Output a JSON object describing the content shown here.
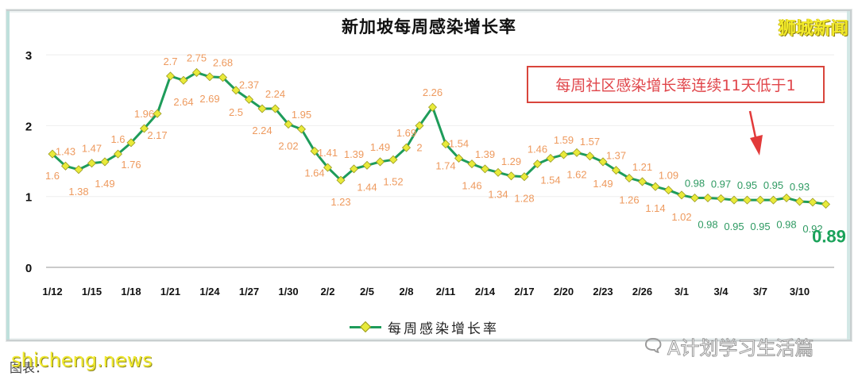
{
  "header": {
    "title": "新加坡每周感染增长率",
    "brand": "狮城新闻"
  },
  "annotation": {
    "text": "每周社区感染增长率连续11天低于1",
    "color": "#e0454a"
  },
  "legend": {
    "label": "每周感染增长率"
  },
  "footer": {
    "caption": "图表：",
    "site_watermark": "shicheng.news",
    "wechat_watermark": "A计划学习生活篇"
  },
  "colors": {
    "line": "#1e9c5a",
    "marker_fill": "#e8ea3a",
    "label_above_1": "#ee9a5e",
    "label_below_1": "#2e9a62",
    "highlight": "#1aa25a"
  },
  "chart_data": {
    "type": "line",
    "title": "新加坡每周感染增长率",
    "xlabel": "",
    "ylabel": "",
    "ylim": [
      0,
      3
    ],
    "yticks": [
      0,
      1,
      2,
      3
    ],
    "grid": true,
    "legend_position": "bottom",
    "xtick_labels": [
      "1/12",
      "1/15",
      "1/18",
      "1/21",
      "1/24",
      "1/27",
      "1/30",
      "2/2",
      "2/5",
      "2/8",
      "2/11",
      "2/14",
      "2/17",
      "2/20",
      "2/23",
      "2/26",
      "3/1",
      "3/4",
      "3/7",
      "3/10"
    ],
    "x": [
      "1/12",
      "1/13",
      "1/14",
      "1/15",
      "1/16",
      "1/17",
      "1/18",
      "1/19",
      "1/20",
      "1/21",
      "1/22",
      "1/23",
      "1/24",
      "1/25",
      "1/26",
      "1/27",
      "1/28",
      "1/29",
      "1/30",
      "1/31",
      "2/1",
      "2/2",
      "2/3",
      "2/4",
      "2/5",
      "2/6",
      "2/7",
      "2/8",
      "2/9",
      "2/10",
      "2/11",
      "2/12",
      "2/13",
      "2/14",
      "2/15",
      "2/16",
      "2/17",
      "2/18",
      "2/19",
      "2/20",
      "2/21",
      "2/22",
      "2/23",
      "2/24",
      "2/25",
      "2/26",
      "2/27",
      "2/28",
      "3/1",
      "3/2",
      "3/3",
      "3/4",
      "3/5",
      "3/6",
      "3/7",
      "3/8",
      "3/9",
      "3/10",
      "3/11",
      "3/12"
    ],
    "series": [
      {
        "name": "每周感染增长率",
        "values": [
          1.6,
          1.43,
          1.38,
          1.47,
          1.49,
          1.6,
          1.76,
          1.96,
          2.17,
          2.7,
          2.64,
          2.75,
          2.69,
          2.68,
          2.5,
          2.37,
          2.24,
          2.24,
          2.02,
          1.95,
          1.64,
          1.41,
          1.23,
          1.39,
          1.44,
          1.49,
          1.52,
          1.69,
          2,
          2.26,
          1.74,
          1.54,
          1.46,
          1.39,
          1.34,
          1.29,
          1.28,
          1.46,
          1.54,
          1.59,
          1.62,
          1.57,
          1.49,
          1.37,
          1.26,
          1.21,
          1.14,
          1.09,
          1.02,
          0.98,
          0.98,
          0.97,
          0.95,
          0.95,
          0.95,
          0.95,
          0.98,
          0.93,
          0.92,
          0.89
        ]
      }
    ],
    "annotations": [
      "每周社区感染增长率连续11天低于1"
    ]
  }
}
